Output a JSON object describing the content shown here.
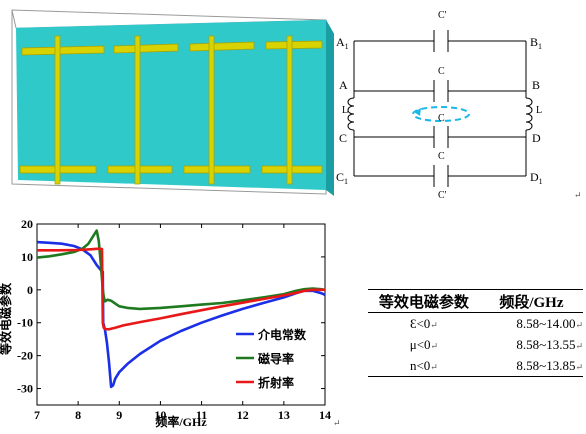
{
  "circuit": {
    "cap_label": "C'",
    "cap_label_mid": "C",
    "ind_label": "L",
    "nodes": {
      "A1": "A",
      "A1_sub": "1",
      "B1": "B",
      "B1_sub": "1",
      "A": "A",
      "B": "B",
      "C": "C",
      "D": "D",
      "C1": "C",
      "C1_sub": "1",
      "D1": "D",
      "D1_sub": "1"
    }
  },
  "para_mark": "↵",
  "chart_data": {
    "type": "line",
    "xlabel": "频率/GHz",
    "ylabel": "等效电磁参数",
    "xlim": [
      7,
      14
    ],
    "ylim": [
      -35,
      20
    ],
    "xticks": [
      "7",
      "8",
      "9",
      "10",
      "11",
      "12",
      "13",
      "14"
    ],
    "yticks": [
      "20",
      "10",
      "0",
      "-10",
      "-20",
      "-30"
    ],
    "legend": "bottom-right",
    "series": [
      {
        "name": "介电常数",
        "color": "#1a2fe6",
        "x": [
          7.0,
          7.3,
          7.6,
          7.9,
          8.1,
          8.3,
          8.45,
          8.55,
          8.6,
          8.61,
          8.65,
          8.7,
          8.75,
          8.8,
          8.85,
          8.9,
          9.0,
          9.2,
          9.5,
          10.0,
          10.5,
          11.0,
          11.5,
          12.0,
          12.5,
          13.0,
          13.3,
          13.5,
          13.7,
          13.9,
          14.0
        ],
        "y": [
          14.5,
          14.3,
          14.0,
          13.3,
          12.3,
          10.5,
          7.5,
          6.0,
          5.5,
          -10.0,
          -12.0,
          -16.0,
          -22.0,
          -29.5,
          -29.0,
          -27.0,
          -25.0,
          -22.5,
          -19.5,
          -15.5,
          -12.5,
          -10.0,
          -7.8,
          -5.8,
          -4.0,
          -2.3,
          -1.0,
          -0.3,
          -0.3,
          -1.0,
          -1.5
        ]
      },
      {
        "name": "磁导率",
        "color": "#1f7a1f",
        "x": [
          7.0,
          7.3,
          7.6,
          7.9,
          8.1,
          8.25,
          8.35,
          8.45,
          8.5,
          8.55,
          8.6,
          8.62,
          8.65,
          8.72,
          8.8,
          8.9,
          9.0,
          9.2,
          9.5,
          10.0,
          10.5,
          11.0,
          11.5,
          12.0,
          12.5,
          13.0,
          13.3,
          13.5,
          13.7,
          13.9,
          14.0
        ],
        "y": [
          9.8,
          10.2,
          10.8,
          11.5,
          12.5,
          14.0,
          16.0,
          18.0,
          15.0,
          8.0,
          0.0,
          -2.0,
          -3.5,
          -3.0,
          -3.3,
          -4.2,
          -5.0,
          -5.5,
          -5.8,
          -5.5,
          -5.0,
          -4.5,
          -4.0,
          -3.2,
          -2.3,
          -1.3,
          -0.3,
          0.2,
          0.4,
          0.2,
          0.0
        ]
      },
      {
        "name": "折射率",
        "color": "#e81818",
        "x": [
          7.0,
          7.5,
          8.0,
          8.3,
          8.5,
          8.58,
          8.6,
          8.62,
          8.65,
          8.75,
          8.9,
          9.1,
          9.5,
          10.0,
          10.5,
          11.0,
          11.5,
          12.0,
          12.5,
          13.0,
          13.3,
          13.5,
          13.7,
          13.9,
          14.0
        ],
        "y": [
          12.0,
          12.0,
          12.1,
          12.3,
          12.5,
          12.4,
          -10.0,
          -11.5,
          -11.9,
          -12.0,
          -11.5,
          -10.8,
          -9.8,
          -8.7,
          -7.4,
          -6.2,
          -5.0,
          -3.9,
          -2.8,
          -1.7,
          -0.9,
          -0.3,
          0.0,
          0.0,
          0.0
        ]
      }
    ]
  },
  "table": {
    "header": [
      "等效电磁参数",
      "频段/GHz"
    ],
    "rows": [
      [
        "Ɛ<0",
        "8.58~14.00"
      ],
      [
        "μ<0",
        "8.58~13.55"
      ],
      [
        "n<0",
        "8.58~13.85"
      ]
    ]
  }
}
